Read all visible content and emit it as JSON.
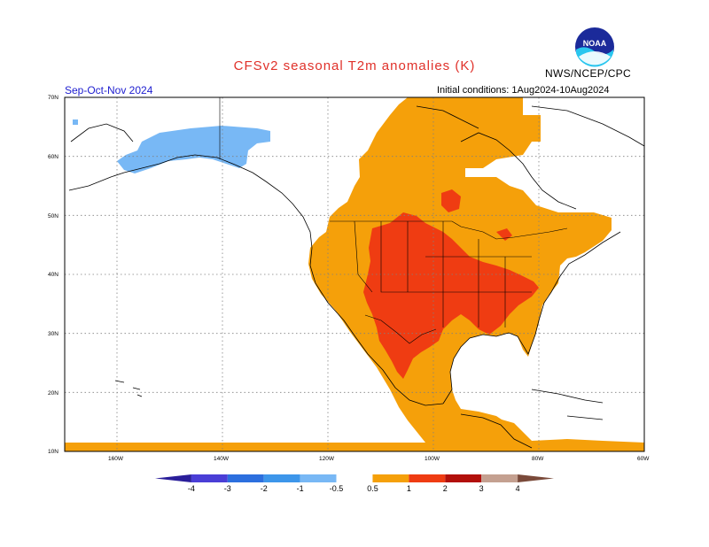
{
  "title": "CFSv2 seasonal T2m anomalies (K)",
  "agency": "NWS/NCEP/CPC",
  "logo_text": "NOAA",
  "season": "Sep-Oct-Nov 2024",
  "initial_conditions": "Initial conditions: 1Aug2024-10Aug2024",
  "lat_ticks": [
    "70N",
    "60N",
    "50N",
    "40N",
    "30N",
    "20N",
    "10N"
  ],
  "lon_ticks": [
    "160W",
    "140W",
    "120W",
    "100W",
    "80W",
    "60W"
  ],
  "colorbar": {
    "labels": [
      "-4",
      "-3",
      "-2",
      "-1",
      "-0.5",
      "0.5",
      "1",
      "2",
      "3",
      "4"
    ],
    "colors": [
      "#2a1e9a",
      "#4a3ed6",
      "#2c6fde",
      "#3d96ea",
      "#78b8f5",
      "#ffffff",
      "#f5a00a",
      "#ef3c12",
      "#b2100a",
      "#c4a090",
      "#7a4a3a"
    ]
  },
  "legend_colors": {
    "light_blue": "#78b8f5",
    "orange": "#f5a00a",
    "red": "#ef3c12"
  }
}
